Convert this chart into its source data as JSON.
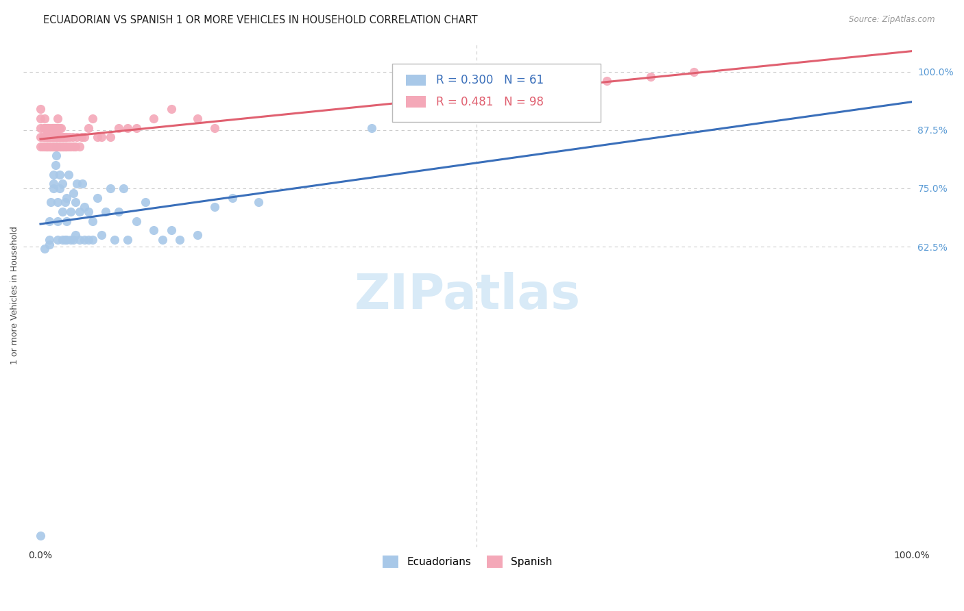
{
  "title": "ECUADORIAN VS SPANISH 1 OR MORE VEHICLES IN HOUSEHOLD CORRELATION CHART",
  "source": "Source: ZipAtlas.com",
  "ylabel": "1 or more Vehicles in Household",
  "ytick_labels": [
    "62.5%",
    "75.0%",
    "87.5%",
    "100.0%"
  ],
  "ytick_values": [
    0.625,
    0.75,
    0.875,
    1.0
  ],
  "watermark": "ZIPatlas",
  "ecuadorians": {
    "R": 0.3,
    "N": 61,
    "line_color": "#3a6fba",
    "scatter_color": "#a8c8e8",
    "x": [
      0.0,
      0.005,
      0.01,
      0.01,
      0.01,
      0.012,
      0.015,
      0.015,
      0.015,
      0.017,
      0.018,
      0.018,
      0.02,
      0.02,
      0.02,
      0.022,
      0.022,
      0.025,
      0.025,
      0.025,
      0.028,
      0.028,
      0.03,
      0.03,
      0.03,
      0.032,
      0.035,
      0.035,
      0.038,
      0.038,
      0.04,
      0.04,
      0.042,
      0.045,
      0.045,
      0.048,
      0.05,
      0.05,
      0.055,
      0.055,
      0.06,
      0.06,
      0.065,
      0.07,
      0.075,
      0.08,
      0.085,
      0.09,
      0.095,
      0.1,
      0.11,
      0.12,
      0.13,
      0.14,
      0.15,
      0.16,
      0.18,
      0.2,
      0.22,
      0.25,
      0.38
    ],
    "y": [
      0.005,
      0.62,
      0.63,
      0.64,
      0.68,
      0.72,
      0.75,
      0.76,
      0.78,
      0.8,
      0.82,
      0.84,
      0.64,
      0.68,
      0.72,
      0.75,
      0.78,
      0.64,
      0.7,
      0.76,
      0.64,
      0.72,
      0.64,
      0.68,
      0.73,
      0.78,
      0.64,
      0.7,
      0.64,
      0.74,
      0.65,
      0.72,
      0.76,
      0.64,
      0.7,
      0.76,
      0.64,
      0.71,
      0.64,
      0.7,
      0.64,
      0.68,
      0.73,
      0.65,
      0.7,
      0.75,
      0.64,
      0.7,
      0.75,
      0.64,
      0.68,
      0.72,
      0.66,
      0.64,
      0.66,
      0.64,
      0.65,
      0.71,
      0.73,
      0.72,
      0.88
    ]
  },
  "spanish": {
    "R": 0.481,
    "N": 98,
    "line_color": "#e06070",
    "scatter_color": "#f4a8b8",
    "x": [
      0.0,
      0.0,
      0.0,
      0.0,
      0.0,
      0.002,
      0.003,
      0.004,
      0.005,
      0.005,
      0.005,
      0.005,
      0.006,
      0.007,
      0.007,
      0.007,
      0.008,
      0.008,
      0.008,
      0.009,
      0.009,
      0.009,
      0.01,
      0.01,
      0.01,
      0.011,
      0.011,
      0.012,
      0.012,
      0.013,
      0.013,
      0.013,
      0.014,
      0.014,
      0.014,
      0.015,
      0.015,
      0.015,
      0.016,
      0.016,
      0.016,
      0.017,
      0.017,
      0.018,
      0.018,
      0.018,
      0.019,
      0.019,
      0.019,
      0.02,
      0.02,
      0.02,
      0.02,
      0.021,
      0.021,
      0.022,
      0.022,
      0.022,
      0.023,
      0.023,
      0.024,
      0.024,
      0.025,
      0.025,
      0.026,
      0.026,
      0.027,
      0.028,
      0.028,
      0.029,
      0.03,
      0.03,
      0.032,
      0.033,
      0.035,
      0.037,
      0.038,
      0.04,
      0.042,
      0.045,
      0.047,
      0.05,
      0.055,
      0.06,
      0.065,
      0.07,
      0.08,
      0.09,
      0.1,
      0.11,
      0.13,
      0.15,
      0.18,
      0.2,
      0.6,
      0.65,
      0.7,
      0.75
    ],
    "y": [
      0.84,
      0.86,
      0.88,
      0.9,
      0.92,
      0.84,
      0.86,
      0.88,
      0.84,
      0.86,
      0.88,
      0.9,
      0.84,
      0.84,
      0.86,
      0.88,
      0.84,
      0.86,
      0.88,
      0.84,
      0.86,
      0.88,
      0.84,
      0.86,
      0.88,
      0.84,
      0.86,
      0.84,
      0.86,
      0.84,
      0.86,
      0.88,
      0.84,
      0.86,
      0.88,
      0.84,
      0.86,
      0.88,
      0.84,
      0.86,
      0.88,
      0.84,
      0.86,
      0.84,
      0.86,
      0.88,
      0.84,
      0.86,
      0.88,
      0.84,
      0.86,
      0.88,
      0.9,
      0.84,
      0.86,
      0.84,
      0.86,
      0.88,
      0.84,
      0.86,
      0.84,
      0.88,
      0.84,
      0.86,
      0.84,
      0.86,
      0.84,
      0.84,
      0.86,
      0.84,
      0.84,
      0.86,
      0.84,
      0.86,
      0.84,
      0.86,
      0.84,
      0.84,
      0.86,
      0.84,
      0.86,
      0.86,
      0.88,
      0.9,
      0.86,
      0.86,
      0.86,
      0.88,
      0.88,
      0.88,
      0.9,
      0.92,
      0.9,
      0.88,
      0.96,
      0.98,
      0.99,
      1.0
    ]
  },
  "xlim": [
    -0.02,
    1.0
  ],
  "ylim": [
    -0.02,
    1.06
  ],
  "background_color": "#ffffff",
  "grid_color": "#cccccc",
  "title_fontsize": 10.5,
  "axis_label_fontsize": 9,
  "tick_fontsize": 10,
  "right_tick_color": "#5b9bd5",
  "watermark_color": "#d8eaf7",
  "watermark_fontsize": 52
}
